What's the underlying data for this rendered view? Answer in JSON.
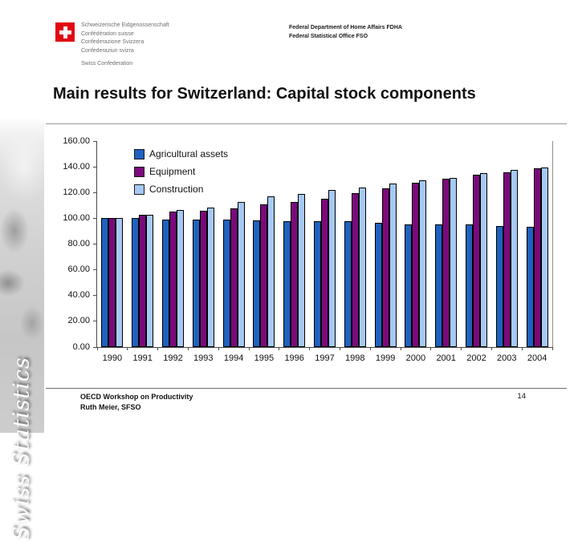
{
  "header": {
    "logo_lines": [
      "Schweizerische Eidgenossenschaft",
      "Confédération suisse",
      "Confederazione Svizzera",
      "Confederaziun svizra"
    ],
    "logo_caption": "Swiss Confederation",
    "dept_line1": "Federal Department of Home Affairs FDHA",
    "dept_line2": "Federal Statistical Office FSO",
    "flag_color": "#e30613"
  },
  "sidebar": {
    "vertical_text": "Swiss Statistics"
  },
  "title": "Main results for Switzerland: Capital stock components",
  "footer": {
    "line1": "OECD Workshop on Productivity",
    "line2": "Ruth Meier, SFSO",
    "page_number": "14"
  },
  "chart_data": {
    "type": "bar",
    "categories": [
      "1990",
      "1991",
      "1992",
      "1993",
      "1994",
      "1995",
      "1996",
      "1997",
      "1998",
      "1999",
      "2000",
      "2001",
      "2002",
      "2003",
      "2004"
    ],
    "series": [
      {
        "name": "Agricultural assets",
        "color": "#1f62be",
        "values": [
          100,
          100.5,
          99,
          99,
          99,
          98.5,
          98,
          97.5,
          97.5,
          96.5,
          95.5,
          95.5,
          95,
          94,
          93.5
        ]
      },
      {
        "name": "Equipment",
        "color": "#7b0a7b",
        "values": [
          100,
          103,
          105,
          106,
          108,
          111,
          113,
          115,
          119.5,
          123.5,
          127.5,
          130.5,
          134,
          136,
          139
        ]
      },
      {
        "name": "Construction",
        "color": "#a6c9f4",
        "values": [
          100,
          103,
          106.5,
          108.5,
          113,
          117,
          119,
          122,
          124,
          127,
          129.5,
          131.5,
          135,
          137.5,
          139.5
        ]
      }
    ],
    "title": "",
    "xlabel": "",
    "ylabel": "",
    "ylim": [
      0,
      160
    ],
    "ytick_step": 20,
    "ytick_decimals": 2,
    "grid": false,
    "legend_position": "top-left-inside",
    "axis_color": "#4a4a4a"
  }
}
